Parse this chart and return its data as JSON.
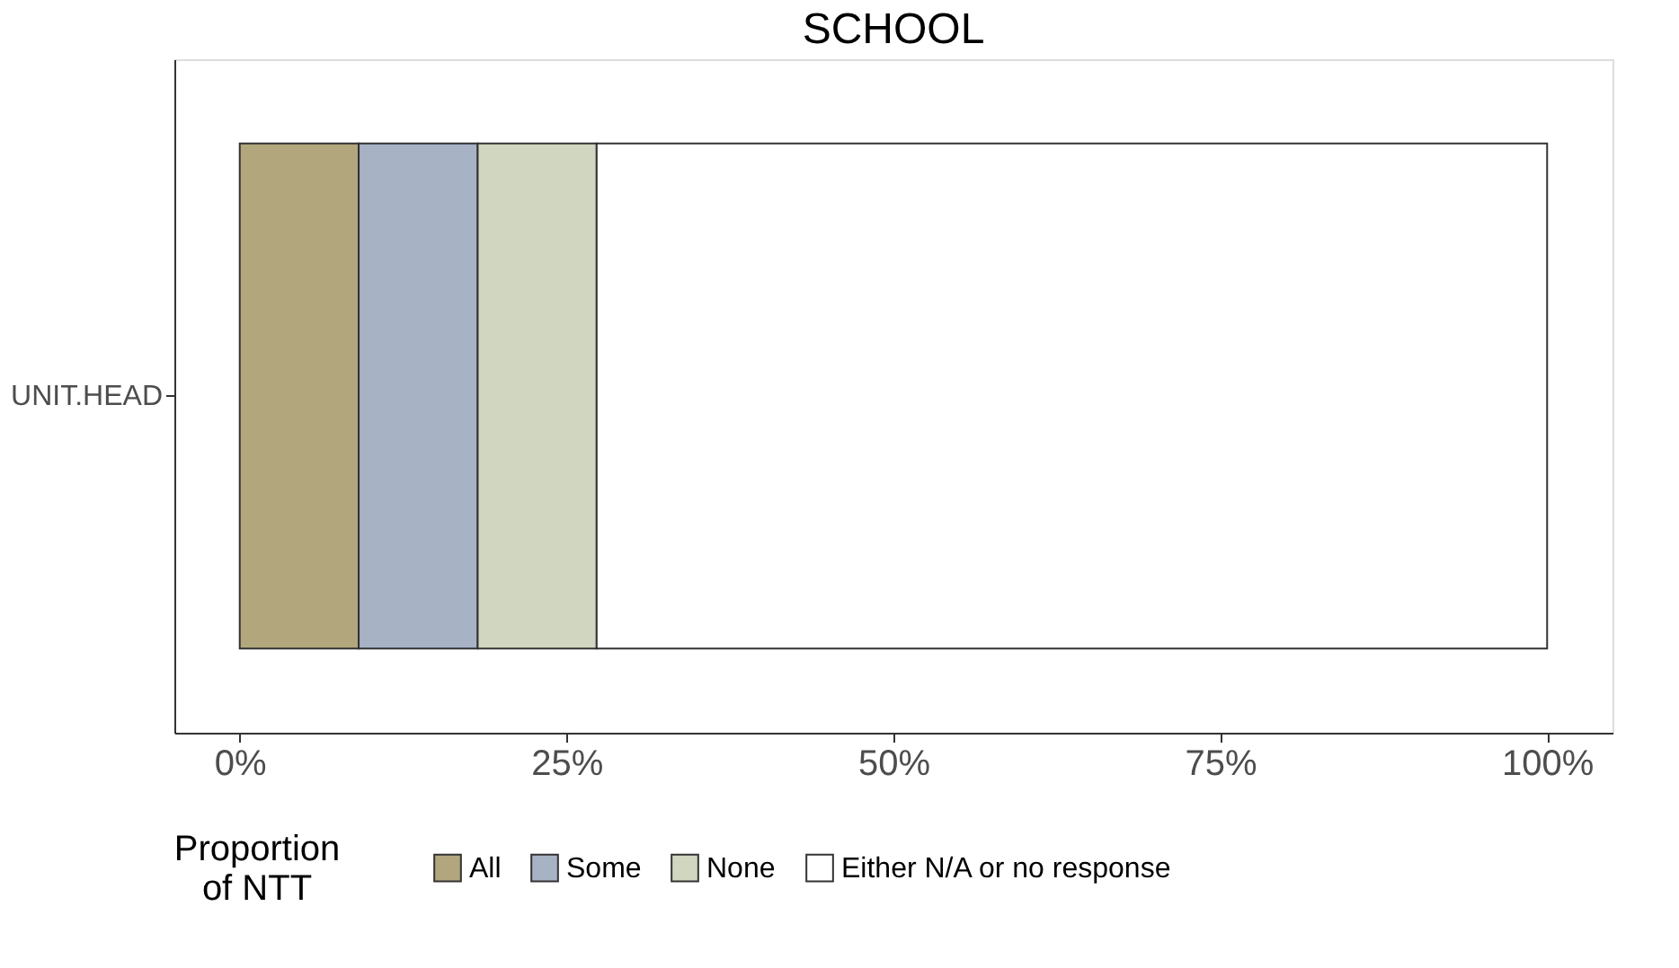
{
  "chart_data": {
    "type": "bar",
    "title": "SCHOOL",
    "orientation": "horizontal",
    "stacked": true,
    "categories": [
      "UNIT.HEAD"
    ],
    "series": [
      {
        "name": "All",
        "color": "#b2a67d",
        "values": [
          9.1
        ]
      },
      {
        "name": "Some",
        "color": "#a7b2c5",
        "values": [
          9.1
        ]
      },
      {
        "name": "None",
        "color": "#d1d6c0",
        "values": [
          9.1
        ]
      },
      {
        "name": "Either N/A or no response",
        "color": "#ffffff",
        "values": [
          72.7
        ]
      }
    ],
    "legend_title": "Proportion\nof NTT",
    "legend": "bottom",
    "grid": false,
    "xlim": [
      -5,
      105
    ],
    "xticks": [
      {
        "value": 0,
        "label": "0%"
      },
      {
        "value": 25,
        "label": "25%"
      },
      {
        "value": 50,
        "label": "50%"
      },
      {
        "value": 75,
        "label": "75%"
      },
      {
        "value": 100,
        "label": "100%"
      }
    ]
  }
}
